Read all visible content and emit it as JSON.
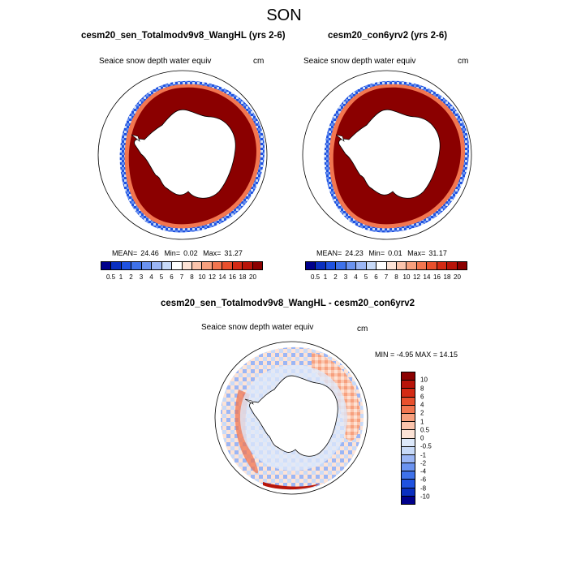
{
  "title": "SON",
  "colors": {
    "abs_scale": [
      "#00008b",
      "#0a2fc0",
      "#1f52e0",
      "#3f72ea",
      "#6b93f0",
      "#9bb6f5",
      "#c8daf8",
      "#ffffff",
      "#fde3d6",
      "#fbc4ac",
      "#f7a07e",
      "#f27650",
      "#e8502d",
      "#d32a14",
      "#b81409",
      "#8b0000"
    ],
    "diff_scale": [
      "#00008b",
      "#0a2fc0",
      "#1f52e0",
      "#3f72ea",
      "#6b93f0",
      "#9bb6f5",
      "#c8daf8",
      "#dde9fb",
      "#fde3d6",
      "#fbc4ac",
      "#f7a07e",
      "#f27650",
      "#e8502d",
      "#d32a14",
      "#b81409",
      "#8b0000"
    ]
  },
  "panels": [
    {
      "title": "cesm20_sen_Totalmodv9v8_WangHL (yrs 2-6)",
      "variable": "Seaice snow depth water equiv",
      "units": "cm",
      "mean_label": "MEAN=",
      "mean": "24.46",
      "min_label": "Min=",
      "min": "0.02",
      "max_label": "Max=",
      "max": "31.27"
    },
    {
      "title": "cesm20_con6yrv2 (yrs 2-6)",
      "variable": "Seaice snow depth water equiv",
      "units": "cm",
      "mean_label": "MEAN=",
      "mean": "24.23",
      "min_label": "Min=",
      "min": "0.01",
      "max_label": "Max=",
      "max": "31.17"
    }
  ],
  "abs_colorbar_labels": [
    "0.5",
    "1",
    "2",
    "3",
    "4",
    "5",
    "6",
    "7",
    "8",
    "10",
    "12",
    "14",
    "16",
    "18",
    "20"
  ],
  "difference": {
    "title": "cesm20_sen_Totalmodv9v8_WangHL - cesm20_con6yrv2",
    "variable": "Seaice snow depth water equiv",
    "units": "cm",
    "minmax_label": "MIN =  -4.95 MAX =  14.15",
    "colorbar_labels": [
      "10",
      "8",
      "6",
      "4",
      "2",
      "1",
      "0.5",
      "0",
      "-0.5",
      "-1",
      "-2",
      "-4",
      "-6",
      "-8",
      "-10"
    ]
  }
}
